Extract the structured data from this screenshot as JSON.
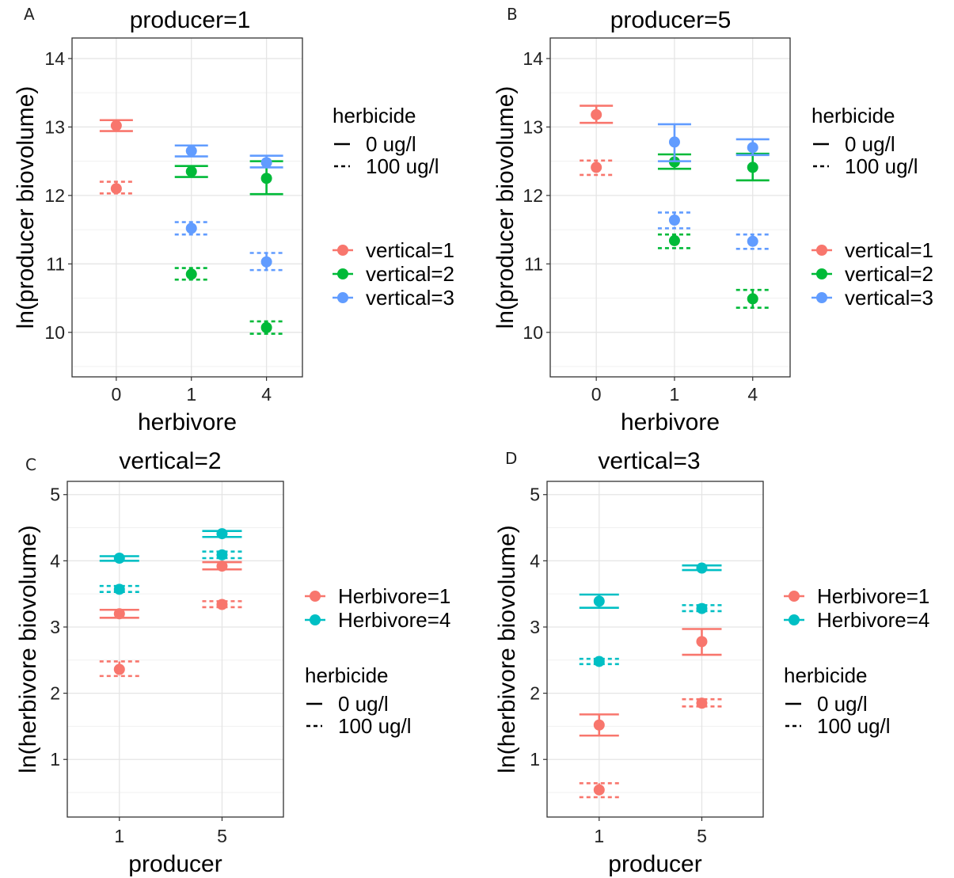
{
  "chart_data": [
    {
      "panel": "A",
      "type": "scatter",
      "title": "producer=1",
      "xlabel": "herbivore",
      "ylabel": "ln(producer biovolume)",
      "x_categories": [
        "0",
        "1",
        "4"
      ],
      "ylim": [
        9.35,
        14.3
      ],
      "yticks": [
        10,
        11,
        12,
        13,
        14
      ],
      "grid": true,
      "group_legend": {
        "title": "",
        "entries": [
          "vertical=1",
          "vertical=2",
          "vertical=3"
        ]
      },
      "linetype_legend": {
        "title": "herbicide",
        "entries": [
          "0 ug/l",
          "100 ug/l"
        ]
      },
      "series": [
        {
          "group": "vertical=1",
          "color": "#F8766D",
          "herbicide": "0 ug/l",
          "points": [
            {
              "x": "0",
              "y": 13.02,
              "lo": 12.94,
              "hi": 13.1
            }
          ]
        },
        {
          "group": "vertical=1",
          "color": "#F8766D",
          "herbicide": "100 ug/l",
          "points": [
            {
              "x": "0",
              "y": 12.1,
              "lo": 12.03,
              "hi": 12.2
            }
          ]
        },
        {
          "group": "vertical=2",
          "color": "#00BA38",
          "herbicide": "0 ug/l",
          "points": [
            {
              "x": "1",
              "y": 12.35,
              "lo": 12.27,
              "hi": 12.43
            },
            {
              "x": "4",
              "y": 12.25,
              "lo": 12.02,
              "hi": 12.5
            }
          ]
        },
        {
          "group": "vertical=2",
          "color": "#00BA38",
          "herbicide": "100 ug/l",
          "points": [
            {
              "x": "1",
              "y": 10.85,
              "lo": 10.77,
              "hi": 10.94
            },
            {
              "x": "4",
              "y": 10.07,
              "lo": 9.98,
              "hi": 10.16
            }
          ]
        },
        {
          "group": "vertical=3",
          "color": "#619CFF",
          "herbicide": "0 ug/l",
          "points": [
            {
              "x": "1",
              "y": 12.65,
              "lo": 12.57,
              "hi": 12.73
            },
            {
              "x": "4",
              "y": 12.48,
              "lo": 12.41,
              "hi": 12.58
            }
          ]
        },
        {
          "group": "vertical=3",
          "color": "#619CFF",
          "herbicide": "100 ug/l",
          "points": [
            {
              "x": "1",
              "y": 11.52,
              "lo": 11.43,
              "hi": 11.61
            },
            {
              "x": "4",
              "y": 11.03,
              "lo": 10.91,
              "hi": 11.16
            }
          ]
        }
      ]
    },
    {
      "panel": "B",
      "type": "scatter",
      "title": "producer=5",
      "xlabel": "herbivore",
      "ylabel": "ln(producer biovolume)",
      "x_categories": [
        "0",
        "1",
        "4"
      ],
      "ylim": [
        9.35,
        14.3
      ],
      "yticks": [
        10,
        11,
        12,
        13,
        14
      ],
      "grid": true,
      "group_legend": {
        "title": "",
        "entries": [
          "vertical=1",
          "vertical=2",
          "vertical=3"
        ]
      },
      "linetype_legend": {
        "title": "herbicide",
        "entries": [
          "0 ug/l",
          "100 ug/l"
        ]
      },
      "series": [
        {
          "group": "vertical=1",
          "color": "#F8766D",
          "herbicide": "0 ug/l",
          "points": [
            {
              "x": "0",
              "y": 13.18,
              "lo": 13.06,
              "hi": 13.31
            }
          ]
        },
        {
          "group": "vertical=1",
          "color": "#F8766D",
          "herbicide": "100 ug/l",
          "points": [
            {
              "x": "0",
              "y": 12.41,
              "lo": 12.3,
              "hi": 12.51
            }
          ]
        },
        {
          "group": "vertical=2",
          "color": "#00BA38",
          "herbicide": "0 ug/l",
          "points": [
            {
              "x": "1",
              "y": 12.49,
              "lo": 12.39,
              "hi": 12.6
            },
            {
              "x": "4",
              "y": 12.41,
              "lo": 12.22,
              "hi": 12.61
            }
          ]
        },
        {
          "group": "vertical=2",
          "color": "#00BA38",
          "herbicide": "100 ug/l",
          "points": [
            {
              "x": "1",
              "y": 11.34,
              "lo": 11.23,
              "hi": 11.43
            },
            {
              "x": "4",
              "y": 10.49,
              "lo": 10.36,
              "hi": 10.62
            }
          ]
        },
        {
          "group": "vertical=3",
          "color": "#619CFF",
          "herbicide": "0 ug/l",
          "points": [
            {
              "x": "1",
              "y": 12.78,
              "lo": 12.5,
              "hi": 13.04
            },
            {
              "x": "4",
              "y": 12.7,
              "lo": 12.59,
              "hi": 12.82
            }
          ]
        },
        {
          "group": "vertical=3",
          "color": "#619CFF",
          "herbicide": "100 ug/l",
          "points": [
            {
              "x": "1",
              "y": 11.64,
              "lo": 11.52,
              "hi": 11.75
            },
            {
              "x": "4",
              "y": 11.33,
              "lo": 11.22,
              "hi": 11.43
            }
          ]
        }
      ]
    },
    {
      "panel": "C",
      "type": "scatter",
      "title": "vertical=2",
      "xlabel": "producer",
      "ylabel": "ln(herbivore biovolume)",
      "x_categories": [
        "1",
        "5"
      ],
      "ylim": [
        0.13,
        5.2
      ],
      "yticks": [
        1,
        2,
        3,
        4,
        5
      ],
      "grid": true,
      "group_legend": {
        "title": "",
        "entries": [
          "Herbivore=1",
          "Herbivore=4"
        ]
      },
      "linetype_legend": {
        "title": "herbicide",
        "entries": [
          "0 ug/l",
          "100 ug/l"
        ]
      },
      "series": [
        {
          "group": "Herbivore=1",
          "color": "#F8766D",
          "herbicide": "0 ug/l",
          "points": [
            {
              "x": "1",
              "y": 3.2,
              "lo": 3.14,
              "hi": 3.26
            },
            {
              "x": "5",
              "y": 3.92,
              "lo": 3.87,
              "hi": 3.98
            }
          ]
        },
        {
          "group": "Herbivore=1",
          "color": "#F8766D",
          "herbicide": "100 ug/l",
          "points": [
            {
              "x": "1",
              "y": 2.36,
              "lo": 2.26,
              "hi": 2.48
            },
            {
              "x": "5",
              "y": 3.34,
              "lo": 3.3,
              "hi": 3.39
            }
          ]
        },
        {
          "group": "Herbivore=4",
          "color": "#00BFC4",
          "herbicide": "0 ug/l",
          "points": [
            {
              "x": "1",
              "y": 4.04,
              "lo": 4.0,
              "hi": 4.07
            },
            {
              "x": "5",
              "y": 4.41,
              "lo": 4.36,
              "hi": 4.45
            }
          ]
        },
        {
          "group": "Herbivore=4",
          "color": "#00BFC4",
          "herbicide": "100 ug/l",
          "points": [
            {
              "x": "1",
              "y": 3.57,
              "lo": 3.53,
              "hi": 3.62
            },
            {
              "x": "5",
              "y": 4.09,
              "lo": 4.04,
              "hi": 4.14
            }
          ]
        }
      ]
    },
    {
      "panel": "D",
      "type": "scatter",
      "title": "vertical=3",
      "xlabel": "producer",
      "ylabel": "ln(herbivore biovolume)",
      "x_categories": [
        "1",
        "5"
      ],
      "ylim": [
        0.13,
        5.2
      ],
      "yticks": [
        1,
        2,
        3,
        4,
        5
      ],
      "grid": true,
      "group_legend": {
        "title": "",
        "entries": [
          "Herbivore=1",
          "Herbivore=4"
        ]
      },
      "linetype_legend": {
        "title": "herbicide",
        "entries": [
          "0 ug/l",
          "100 ug/l"
        ]
      },
      "series": [
        {
          "group": "Herbivore=1",
          "color": "#F8766D",
          "herbicide": "0 ug/l",
          "points": [
            {
              "x": "1",
              "y": 1.52,
              "lo": 1.36,
              "hi": 1.68
            },
            {
              "x": "5",
              "y": 2.78,
              "lo": 2.58,
              "hi": 2.97
            }
          ]
        },
        {
          "group": "Herbivore=1",
          "color": "#F8766D",
          "herbicide": "100 ug/l",
          "points": [
            {
              "x": "1",
              "y": 0.54,
              "lo": 0.43,
              "hi": 0.64
            },
            {
              "x": "5",
              "y": 1.85,
              "lo": 1.8,
              "hi": 1.91
            }
          ]
        },
        {
          "group": "Herbivore=4",
          "color": "#00BFC4",
          "herbicide": "0 ug/l",
          "points": [
            {
              "x": "1",
              "y": 3.39,
              "lo": 3.29,
              "hi": 3.49
            },
            {
              "x": "5",
              "y": 3.89,
              "lo": 3.86,
              "hi": 3.93
            }
          ]
        },
        {
          "group": "Herbivore=4",
          "color": "#00BFC4",
          "herbicide": "100 ug/l",
          "points": [
            {
              "x": "1",
              "y": 2.48,
              "lo": 2.44,
              "hi": 2.52
            },
            {
              "x": "5",
              "y": 3.28,
              "lo": 3.24,
              "hi": 3.33
            }
          ]
        }
      ]
    }
  ]
}
